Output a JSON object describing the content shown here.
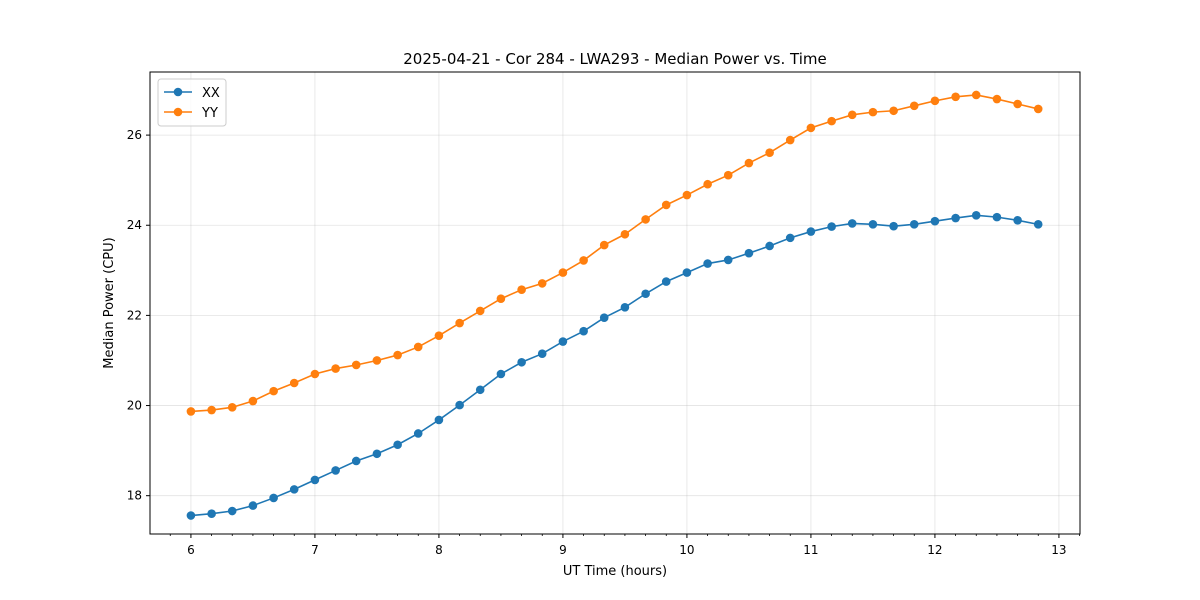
{
  "chart_data": {
    "type": "line",
    "title": "2025-04-21 - Cor 284 - LWA293 - Median Power vs. Time",
    "xlabel": "UT Time (hours)",
    "ylabel": "Median Power (CPU)",
    "xlim": [
      5.67,
      13.17
    ],
    "ylim": [
      17.15,
      27.4
    ],
    "xticks": [
      6,
      7,
      8,
      9,
      10,
      11,
      12,
      13
    ],
    "xtick_labels": [
      "6",
      "7",
      "8",
      "9",
      "10",
      "11",
      "12",
      "13"
    ],
    "yticks": [
      18,
      20,
      22,
      24,
      26
    ],
    "ytick_labels": [
      "18",
      "20",
      "22",
      "24",
      "26"
    ],
    "grid": true,
    "legend_position": "top-left",
    "x": [
      6.0,
      6.167,
      6.333,
      6.5,
      6.667,
      6.833,
      7.0,
      7.167,
      7.333,
      7.5,
      7.667,
      7.833,
      8.0,
      8.167,
      8.333,
      8.5,
      8.667,
      8.833,
      9.0,
      9.167,
      9.333,
      9.5,
      9.667,
      9.833,
      10.0,
      10.167,
      10.333,
      10.5,
      10.667,
      10.833,
      11.0,
      11.167,
      11.333,
      11.5,
      11.667,
      11.833,
      12.0,
      12.167,
      12.333,
      12.5,
      12.667,
      12.833
    ],
    "series": [
      {
        "name": "XX",
        "color": "#1f77b4",
        "values": [
          17.56,
          17.6,
          17.66,
          17.78,
          17.95,
          18.14,
          18.35,
          18.56,
          18.77,
          18.93,
          19.13,
          19.38,
          19.68,
          20.01,
          20.35,
          20.7,
          20.96,
          21.15,
          21.42,
          21.65,
          21.95,
          22.18,
          22.48,
          22.75,
          22.95,
          23.15,
          23.23,
          23.38,
          23.54,
          23.72,
          23.86,
          23.97,
          24.04,
          24.02,
          23.98,
          24.02,
          24.09,
          24.16,
          24.22,
          24.18,
          24.11,
          24.02
        ]
      },
      {
        "name": "YY",
        "color": "#ff7f0e",
        "values": [
          19.87,
          19.9,
          19.96,
          20.1,
          20.32,
          20.5,
          20.7,
          20.82,
          20.9,
          21.0,
          21.12,
          21.3,
          21.55,
          21.83,
          22.1,
          22.37,
          22.57,
          22.71,
          22.95,
          23.22,
          23.56,
          23.8,
          24.13,
          24.45,
          24.67,
          24.91,
          25.11,
          25.38,
          25.61,
          25.89,
          26.16,
          26.31,
          26.45,
          26.51,
          26.54,
          26.65,
          26.76,
          26.85,
          26.89,
          26.8,
          26.69,
          26.58
        ]
      }
    ]
  }
}
